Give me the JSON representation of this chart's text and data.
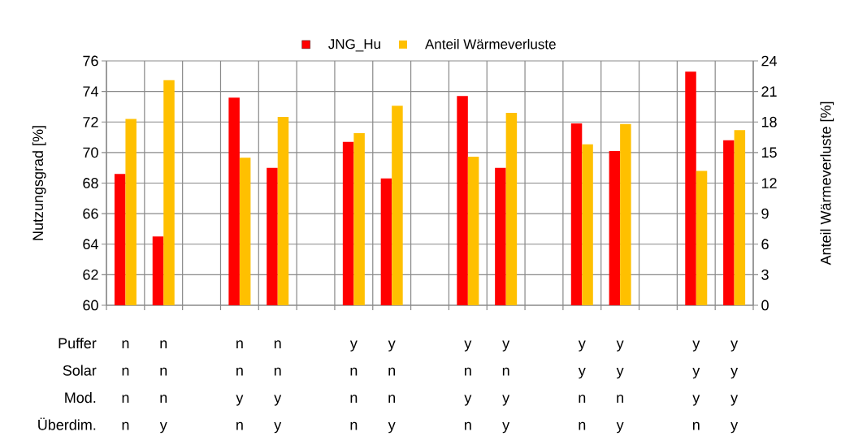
{
  "chart_data": {
    "type": "bar",
    "categories": [
      null,
      null,
      null,
      null,
      null,
      null,
      null,
      null,
      null,
      null,
      null,
      null,
      null,
      null,
      null,
      null,
      null
    ],
    "series": [
      {
        "name": "JNG_Hu",
        "color": "#ff0000",
        "values": [
          68.6,
          64.5,
          null,
          73.6,
          69.0,
          null,
          70.7,
          68.3,
          null,
          73.7,
          69.0,
          null,
          71.9,
          70.1,
          null,
          75.3,
          70.8
        ]
      },
      {
        "name": "Anteil Wärmeverluste",
        "color": "#ffc000",
        "axis": "y2",
        "values": [
          18.3,
          22.1,
          null,
          14.5,
          18.5,
          null,
          16.9,
          19.6,
          null,
          14.6,
          18.9,
          null,
          15.8,
          17.8,
          null,
          13.2,
          17.2
        ]
      }
    ],
    "ylabel": "Nutzungsgrad [%]",
    "y2label": "Anteil Wärmeverluste [%]",
    "ylim": [
      60,
      76
    ],
    "yticks": [
      60,
      62,
      64,
      66,
      68,
      70,
      72,
      74,
      76
    ],
    "y2lim": [
      0,
      24
    ],
    "y2ticks": [
      0,
      3,
      6,
      9,
      12,
      15,
      18,
      21,
      24
    ],
    "grid": true,
    "legend": "top",
    "annotations": [
      "Puffer",
      "n",
      "n",
      "n",
      "n",
      "y",
      "y",
      "y",
      "y",
      "y",
      "y",
      "y",
      "y",
      "Solar",
      "n",
      "n",
      "n",
      "n",
      "n",
      "n",
      "n",
      "n",
      "y",
      "y",
      "y",
      "y",
      "Mod.",
      "n",
      "n",
      "y",
      "y",
      "n",
      "n",
      "y",
      "y",
      "n",
      "n",
      "y",
      "y",
      "Überdim.",
      "n",
      "y",
      "n",
      "y",
      "n",
      "y",
      "n",
      "y",
      "n",
      "y",
      "n",
      "y"
    ]
  }
}
